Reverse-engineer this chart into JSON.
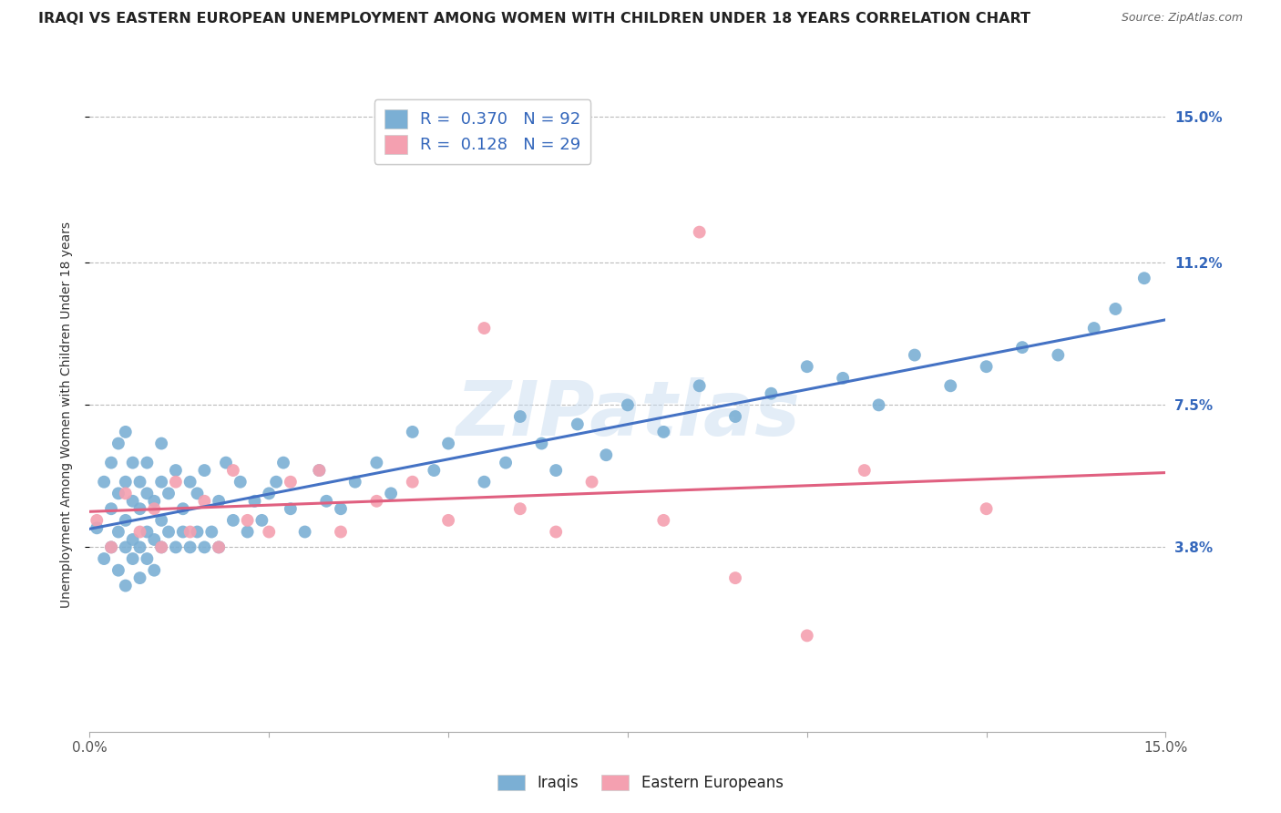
{
  "title": "IRAQI VS EASTERN EUROPEAN UNEMPLOYMENT AMONG WOMEN WITH CHILDREN UNDER 18 YEARS CORRELATION CHART",
  "source": "Source: ZipAtlas.com",
  "ylabel": "Unemployment Among Women with Children Under 18 years",
  "x_min": 0.0,
  "x_max": 0.15,
  "y_min": -0.01,
  "y_max": 0.155,
  "y_ticks": [
    0.038,
    0.075,
    0.112,
    0.15
  ],
  "y_tick_labels": [
    "3.8%",
    "7.5%",
    "11.2%",
    "15.0%"
  ],
  "x_ticks": [
    0.0,
    0.025,
    0.05,
    0.075,
    0.1,
    0.125,
    0.15
  ],
  "series1_color": "#7BAFD4",
  "series2_color": "#F4A0B0",
  "line1_color": "#4472C4",
  "line2_color": "#E06080",
  "series1_label": "Iraqis",
  "series2_label": "Eastern Europeans",
  "R1": 0.37,
  "N1": 92,
  "R2": 0.128,
  "N2": 29,
  "background_color": "#FFFFFF",
  "grid_color": "#BBBBBB",
  "watermark": "ZIPatlas",
  "title_fontsize": 11.5,
  "ylabel_fontsize": 10,
  "tick_fontsize": 11,
  "legend_fontsize": 13,
  "legend_color": "#3366BB",
  "iraqis_x": [
    0.001,
    0.002,
    0.002,
    0.003,
    0.003,
    0.003,
    0.004,
    0.004,
    0.004,
    0.004,
    0.005,
    0.005,
    0.005,
    0.005,
    0.005,
    0.006,
    0.006,
    0.006,
    0.006,
    0.007,
    0.007,
    0.007,
    0.007,
    0.008,
    0.008,
    0.008,
    0.008,
    0.009,
    0.009,
    0.009,
    0.01,
    0.01,
    0.01,
    0.01,
    0.011,
    0.011,
    0.012,
    0.012,
    0.013,
    0.013,
    0.014,
    0.014,
    0.015,
    0.015,
    0.016,
    0.016,
    0.017,
    0.018,
    0.018,
    0.019,
    0.02,
    0.021,
    0.022,
    0.023,
    0.024,
    0.025,
    0.026,
    0.027,
    0.028,
    0.03,
    0.032,
    0.033,
    0.035,
    0.037,
    0.04,
    0.042,
    0.045,
    0.048,
    0.05,
    0.055,
    0.058,
    0.06,
    0.063,
    0.065,
    0.068,
    0.072,
    0.075,
    0.08,
    0.085,
    0.09,
    0.095,
    0.1,
    0.105,
    0.11,
    0.115,
    0.12,
    0.125,
    0.13,
    0.135,
    0.14,
    0.143,
    0.147
  ],
  "iraqis_y": [
    0.043,
    0.055,
    0.035,
    0.048,
    0.038,
    0.06,
    0.042,
    0.052,
    0.032,
    0.065,
    0.038,
    0.045,
    0.055,
    0.028,
    0.068,
    0.04,
    0.05,
    0.035,
    0.06,
    0.038,
    0.048,
    0.055,
    0.03,
    0.042,
    0.052,
    0.035,
    0.06,
    0.04,
    0.05,
    0.032,
    0.045,
    0.055,
    0.038,
    0.065,
    0.042,
    0.052,
    0.038,
    0.058,
    0.042,
    0.048,
    0.038,
    0.055,
    0.042,
    0.052,
    0.038,
    0.058,
    0.042,
    0.05,
    0.038,
    0.06,
    0.045,
    0.055,
    0.042,
    0.05,
    0.045,
    0.052,
    0.055,
    0.06,
    0.048,
    0.042,
    0.058,
    0.05,
    0.048,
    0.055,
    0.06,
    0.052,
    0.068,
    0.058,
    0.065,
    0.055,
    0.06,
    0.072,
    0.065,
    0.058,
    0.07,
    0.062,
    0.075,
    0.068,
    0.08,
    0.072,
    0.078,
    0.085,
    0.082,
    0.075,
    0.088,
    0.08,
    0.085,
    0.09,
    0.088,
    0.095,
    0.1,
    0.108
  ],
  "eastern_x": [
    0.001,
    0.003,
    0.005,
    0.007,
    0.009,
    0.01,
    0.012,
    0.014,
    0.016,
    0.018,
    0.02,
    0.022,
    0.025,
    0.028,
    0.032,
    0.035,
    0.04,
    0.045,
    0.05,
    0.055,
    0.06,
    0.065,
    0.07,
    0.08,
    0.085,
    0.09,
    0.1,
    0.108,
    0.125
  ],
  "eastern_y": [
    0.045,
    0.038,
    0.052,
    0.042,
    0.048,
    0.038,
    0.055,
    0.042,
    0.05,
    0.038,
    0.058,
    0.045,
    0.042,
    0.055,
    0.058,
    0.042,
    0.05,
    0.055,
    0.045,
    0.095,
    0.048,
    0.042,
    0.055,
    0.045,
    0.12,
    0.03,
    0.015,
    0.058,
    0.048
  ]
}
